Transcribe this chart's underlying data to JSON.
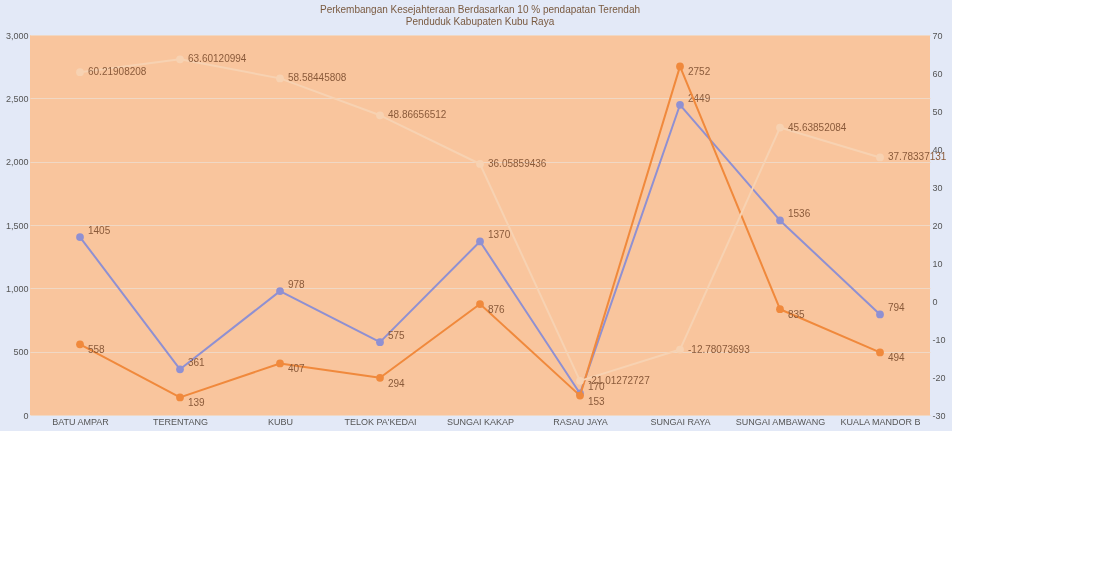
{
  "chart_data": {
    "type": "line",
    "title": [
      "Perkembangan Kesejahteraan Berdasarkan 10 % pendapatan Terendah",
      "Penduduk Kabupaten Kubu Raya"
    ],
    "categories": [
      "BATU AMPAR",
      "TERENTANG",
      "KUBU",
      "TELOK PA'KEDAI",
      "SUNGAI KAKAP",
      "RASAU JAYA",
      "SUNGAI RAYA",
      "SUNGAI AMBAWANG",
      "KUALA MANDOR B"
    ],
    "series": [
      {
        "color": "#8f90d2",
        "values": [
          1405,
          361,
          978,
          575,
          1370,
          170,
          2449,
          1536,
          794
        ]
      },
      {
        "color": "#f0893c",
        "values": [
          558,
          139,
          407,
          294,
          876,
          153,
          2752,
          835,
          494
        ]
      },
      {
        "color": "#f7d2b2",
        "axis": "y2",
        "values": [
          60.21908208,
          63.60120994,
          58.58445808,
          48.86656512,
          36.05859436,
          -21.01272727,
          -12.78073693,
          45.63852084,
          37.78337131
        ]
      }
    ],
    "ylim": [
      0,
      3000
    ],
    "yticks": [
      0,
      {
        "value": 500,
        "label": "500"
      },
      {
        "value": 1000,
        "label": "1,000"
      },
      {
        "value": 1500,
        "label": "1,500"
      },
      {
        "value": 2000,
        "label": "2,000"
      },
      {
        "value": 2500,
        "label": "2,500"
      },
      {
        "value": 3000,
        "label": "3,000"
      }
    ],
    "y2lim": [
      -30,
      70
    ],
    "y2ticks": [
      -30,
      -20,
      -10,
      0,
      10,
      20,
      30,
      40,
      50,
      60,
      70
    ],
    "grid": "y",
    "marker": "circle",
    "line_style": "solid",
    "data_labels": true
  }
}
